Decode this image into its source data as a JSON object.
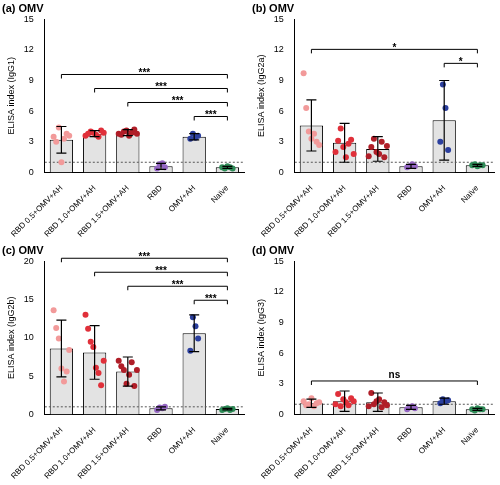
{
  "chart_data": [
    {
      "type": "bar",
      "title": "(a) OMV",
      "y_label": "ELISA index (IgG1)",
      "categories": [
        "RBD 0.5+OMV+AH",
        "RBD 1.0+OMV+AH",
        "RBD 1.5+OMV+AH",
        "RBD",
        "OMV+AH",
        "Naïve"
      ],
      "values": [
        3.2,
        3.8,
        3.9,
        0.6,
        3.5,
        0.5
      ],
      "errors": [
        1.3,
        0.3,
        0.3,
        0.3,
        0.3,
        0.1
      ],
      "points": [
        [
          3.5,
          3.0,
          4.4,
          1.0,
          3.3,
          3.8,
          3.6
        ],
        [
          3.6,
          3.8,
          4.0,
          3.9,
          3.7,
          3.5,
          4.1,
          3.9
        ],
        [
          3.8,
          3.7,
          4.0,
          4.1,
          3.6,
          3.9,
          4.2,
          3.8
        ],
        [
          0.4,
          0.8,
          0.9,
          0.5
        ],
        [
          3.3,
          3.8,
          3.4,
          3.6
        ],
        [
          0.5,
          0.4,
          0.6,
          0.5,
          0.4
        ]
      ],
      "color": "#e3e3e3",
      "colors": [
        "#f29a9a",
        "#e0303a",
        "#b01e28",
        "#9466c2",
        "#2b3f9e",
        "#2e8b57"
      ],
      "ylim": [
        0,
        15
      ],
      "yticks": [
        0,
        3,
        6,
        9,
        12,
        15
      ],
      "grid": false,
      "cutoff": 1,
      "annotations": [
        {
          "from": "RBD 0.5+OMV+AH",
          "to": "Naïve",
          "label": "***"
        },
        {
          "from": "RBD 1.0+OMV+AH",
          "to": "Naïve",
          "label": "***"
        },
        {
          "from": "RBD 1.5+OMV+AH",
          "to": "Naïve",
          "label": "***"
        },
        {
          "from": "OMV+AH",
          "to": "Naïve",
          "label": "***"
        }
      ]
    },
    {
      "type": "bar",
      "title": "(b) OMV",
      "y_label": "ELISA index (IgG2a)",
      "categories": [
        "RBD 0.5+OMV+AH",
        "RBD 1.0+OMV+AH",
        "RBD 1.5+OMV+AH",
        "RBD",
        "OMV+AH",
        "Naïve"
      ],
      "values": [
        4.6,
        2.9,
        2.3,
        0.6,
        5.1,
        0.7
      ],
      "errors": [
        2.5,
        1.9,
        1.2,
        0.2,
        3.9,
        0.1
      ],
      "points": [
        [
          9.7,
          6.3,
          4.0,
          3.3,
          3.8,
          3.0,
          2.7
        ],
        [
          2.0,
          3.1,
          4.3,
          2.5,
          1.5,
          2.8,
          3.2,
          1.8
        ],
        [
          1.6,
          2.5,
          3.3,
          2.0,
          1.8,
          3.0,
          1.5,
          2.6
        ],
        [
          0.5,
          0.6,
          0.8,
          0.6
        ],
        [
          3.0,
          8.6,
          6.3,
          2.2
        ],
        [
          0.7,
          0.8,
          0.6,
          0.7,
          0.7
        ]
      ],
      "color": "#e3e3e3",
      "colors": [
        "#f29a9a",
        "#e0303a",
        "#b01e28",
        "#9466c2",
        "#2b3f9e",
        "#2e8b57"
      ],
      "ylim": [
        0,
        15
      ],
      "yticks": [
        0,
        3,
        6,
        9,
        12,
        15
      ],
      "grid": false,
      "cutoff": 1,
      "annotations": [
        {
          "from": "RBD 0.5+OMV+AH",
          "to": "Naïve",
          "label": "*"
        },
        {
          "from": "OMV+AH",
          "to": "Naïve",
          "label": "*"
        }
      ]
    },
    {
      "type": "bar",
      "title": "(c) OMV",
      "y_label": "ELISA index (IgG2b)",
      "categories": [
        "RBD 0.5+OMV+AH",
        "RBD 1.0+OMV+AH",
        "RBD 1.5+OMV+AH",
        "RBD",
        "OMV+AH",
        "Naïve"
      ],
      "values": [
        8.6,
        8.1,
        5.6,
        0.8,
        10.6,
        0.7
      ],
      "errors": [
        3.7,
        3.5,
        1.9,
        0.2,
        2.4,
        0.1
      ],
      "points": [
        [
          13.6,
          11.3,
          9.9,
          6.0,
          4.3,
          5.6,
          8.4
        ],
        [
          13.0,
          11.2,
          9.5,
          8.8,
          6.1,
          5.4,
          3.8,
          7.0
        ],
        [
          7.0,
          6.3,
          5.8,
          4.0,
          5.2,
          6.8,
          3.7,
          5.8
        ],
        [
          0.6,
          0.9,
          0.8,
          1.0
        ],
        [
          8.3,
          12.7,
          11.5,
          9.9
        ],
        [
          0.6,
          0.7,
          0.8,
          0.6,
          0.7
        ]
      ],
      "color": "#e3e3e3",
      "colors": [
        "#f29a9a",
        "#e0303a",
        "#b01e28",
        "#9466c2",
        "#2b3f9e",
        "#2e8b57"
      ],
      "ylim": [
        0,
        20
      ],
      "yticks": [
        0,
        5,
        10,
        15,
        20
      ],
      "grid": false,
      "cutoff": 1,
      "annotations": [
        {
          "from": "RBD 0.5+OMV+AH",
          "to": "Naïve",
          "label": "***"
        },
        {
          "from": "RBD 1.0+OMV+AH",
          "to": "Naïve",
          "label": "***"
        },
        {
          "from": "RBD 1.5+OMV+AH",
          "to": "Naïve",
          "label": "***"
        },
        {
          "from": "OMV+AH",
          "to": "Naïve",
          "label": "***"
        }
      ]
    },
    {
      "type": "bar",
      "title": "(d) OMV",
      "y_label": "ELISA index (IgG3)",
      "categories": [
        "RBD 0.5+OMV+AH",
        "RBD 1.0+OMV+AH",
        "RBD 1.5+OMV+AH",
        "RBD",
        "OMV+AH",
        "Naïve"
      ],
      "values": [
        1.1,
        1.3,
        1.2,
        0.7,
        1.3,
        0.5
      ],
      "errors": [
        0.4,
        1.0,
        0.9,
        0.2,
        0.3,
        0.1
      ],
      "points": [
        [
          1.3,
          0.9,
          1.0,
          1.6,
          0.8,
          1.1,
          1.2
        ],
        [
          1.0,
          2.0,
          0.8,
          1.5,
          1.2,
          0.9,
          1.6,
          1.3
        ],
        [
          0.8,
          2.1,
          1.0,
          1.3,
          1.5,
          0.7,
          1.2,
          0.9
        ],
        [
          0.5,
          0.7,
          0.8,
          0.6
        ],
        [
          1.1,
          1.5,
          1.3,
          1.4
        ],
        [
          0.5,
          0.4,
          0.6,
          0.5,
          0.5
        ]
      ],
      "color": "#e3e3e3",
      "colors": [
        "#f29a9a",
        "#e0303a",
        "#b01e28",
        "#9466c2",
        "#2b3f9e",
        "#2e8b57"
      ],
      "ylim": [
        0,
        15
      ],
      "yticks": [
        0,
        3,
        6,
        9,
        12,
        15
      ],
      "grid": false,
      "cutoff": 1,
      "annotations": [
        {
          "from": "RBD 0.5+OMV+AH",
          "to": "Naïve",
          "label": "ns"
        }
      ]
    }
  ]
}
